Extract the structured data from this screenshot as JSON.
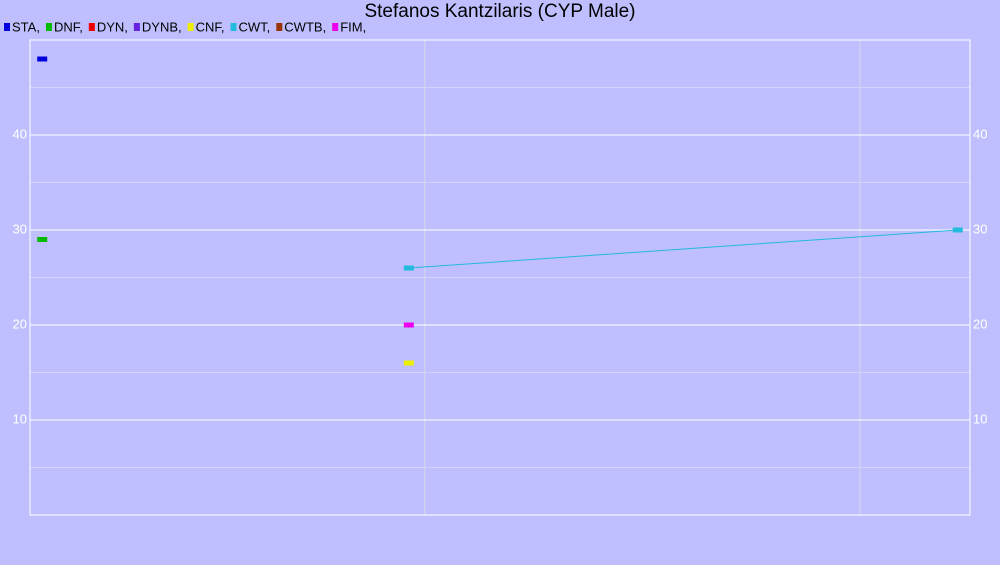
{
  "chart_data": {
    "type": "line",
    "title": "Stefanos Kantzilaris (CYP Male)",
    "series": [
      {
        "name": "STA,",
        "color": "#0000dd",
        "x": [
          1.3
        ],
        "values": [
          48
        ]
      },
      {
        "name": "DNF,",
        "color": "#00bb00",
        "x": [
          1.3
        ],
        "values": [
          29
        ]
      },
      {
        "name": "DYN,",
        "color": "#ee0000",
        "x": [],
        "values": []
      },
      {
        "name": "DYNB,",
        "color": "#6622dd",
        "x": [],
        "values": []
      },
      {
        "name": "CNF,",
        "color": "#eeee00",
        "x": [
          40.3
        ],
        "values": [
          16
        ]
      },
      {
        "name": "CWT,",
        "color": "#22bbdd",
        "x": [
          40.3,
          98.7
        ],
        "values": [
          26,
          30
        ]
      },
      {
        "name": "CWTB,",
        "color": "#993300",
        "x": [],
        "values": []
      },
      {
        "name": "FIM,",
        "color": "#ee00ee",
        "x": [
          40.3
        ],
        "values": [
          20
        ]
      }
    ],
    "xlim": [
      0,
      100
    ],
    "xticks": [
      42,
      88.3
    ],
    "ylim": [
      0,
      50
    ],
    "yticks": [
      10,
      20,
      30,
      40
    ],
    "yminorticks": [
      5,
      15,
      25,
      35,
      45
    ],
    "grid": true,
    "legend": "top-left"
  }
}
